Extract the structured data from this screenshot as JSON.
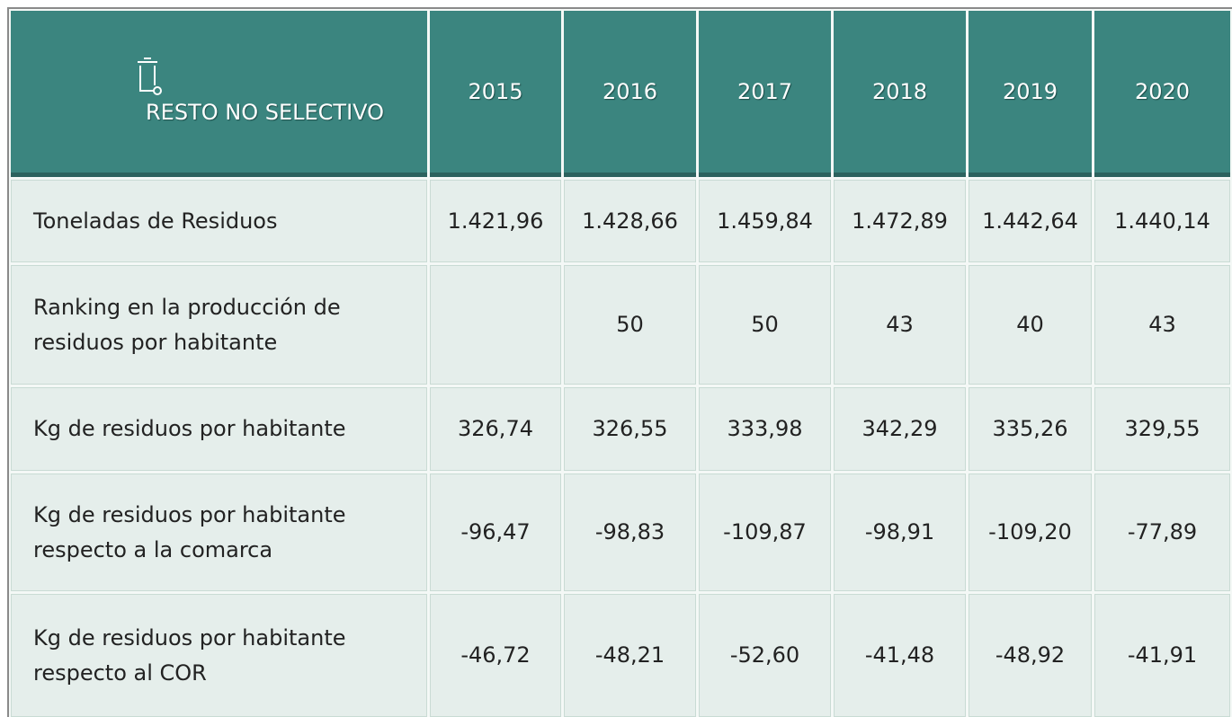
{
  "table": {
    "header": {
      "title": "RESTO NO SELECTIVO",
      "years": [
        "2015",
        "2016",
        "2017",
        "2018",
        "2019",
        "2020"
      ]
    },
    "rows": [
      {
        "label": "Toneladas de Residuos",
        "cells": [
          "1.421,96",
          "1.428,66",
          "1.459,84",
          "1.472,89",
          "1.442,64",
          "1.440,14"
        ]
      },
      {
        "label": "Ranking en la producción de residuos por habitante",
        "cells": [
          null,
          "50",
          "50",
          "43",
          "40",
          "43"
        ]
      },
      {
        "label": "Kg de residuos por habitante",
        "cells": [
          "326,74",
          "326,55",
          "333,98",
          "342,29",
          "335,26",
          "329,55"
        ]
      },
      {
        "label": "Kg de residuos por habitante respecto a la comarca",
        "cells": [
          "-96,47",
          "-98,83",
          "-109,87",
          "-98,91",
          "-109,20",
          "-77,89"
        ]
      },
      {
        "label": "Kg de residuos por habitante respecto al COR",
        "cells": [
          "-46,72",
          "-48,21",
          "-52,60",
          "-41,48",
          "-48,92",
          "-41,91"
        ]
      }
    ]
  }
}
